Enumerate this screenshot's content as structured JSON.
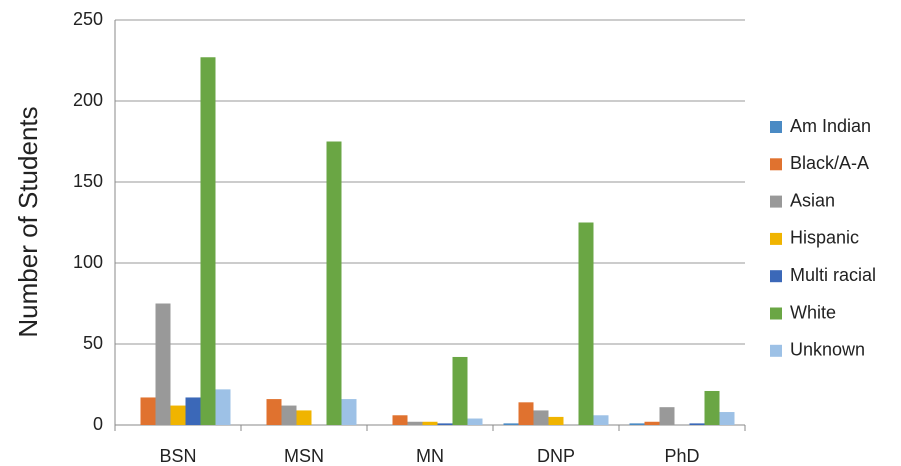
{
  "chart_data": {
    "type": "bar",
    "y_label": "Number of Students",
    "categories": [
      "BSN",
      "MSN",
      "MN",
      "DNP",
      "PhD"
    ],
    "series": [
      {
        "name": "Am Indian",
        "color": "#4a8ac4",
        "values": [
          0,
          0,
          0,
          1,
          1
        ]
      },
      {
        "name": "Black/A-A",
        "color": "#e0722f",
        "values": [
          17,
          16,
          6,
          14,
          2
        ]
      },
      {
        "name": "Asian",
        "color": "#999999",
        "values": [
          75,
          12,
          2,
          9,
          11
        ]
      },
      {
        "name": "Hispanic",
        "color": "#f0b400",
        "values": [
          12,
          9,
          2,
          5,
          0
        ]
      },
      {
        "name": "Multi racial",
        "color": "#3b68b8",
        "values": [
          17,
          0,
          1,
          0,
          1
        ]
      },
      {
        "name": "White",
        "color": "#6aa644",
        "values": [
          227,
          175,
          42,
          125,
          21
        ]
      },
      {
        "name": "Unknown",
        "color": "#9dc1e6",
        "values": [
          22,
          16,
          4,
          6,
          8
        ]
      }
    ],
    "ylim": [
      0,
      250
    ],
    "yticks": [
      0,
      50,
      100,
      150,
      200,
      250
    ],
    "grid": true,
    "legend": "right"
  }
}
